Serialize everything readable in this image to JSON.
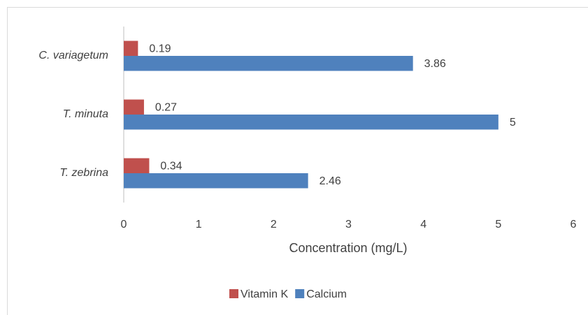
{
  "chart_data": {
    "type": "bar",
    "orientation": "horizontal",
    "x_label": "Concentration (mg/L)",
    "categories": [
      "C. variagetum",
      "T. minuta",
      "T. zebrina"
    ],
    "series": [
      {
        "name": "Vitamin K",
        "color": "#c0504d",
        "values": [
          0.19,
          0.27,
          0.34
        ]
      },
      {
        "name": "Calcium",
        "color": "#4f81bd",
        "values": [
          3.86,
          5,
          2.46
        ]
      }
    ],
    "xlim": [
      0,
      6
    ],
    "xticks": [
      0,
      1,
      2,
      3,
      4,
      5,
      6
    ],
    "legend": "bottom"
  }
}
